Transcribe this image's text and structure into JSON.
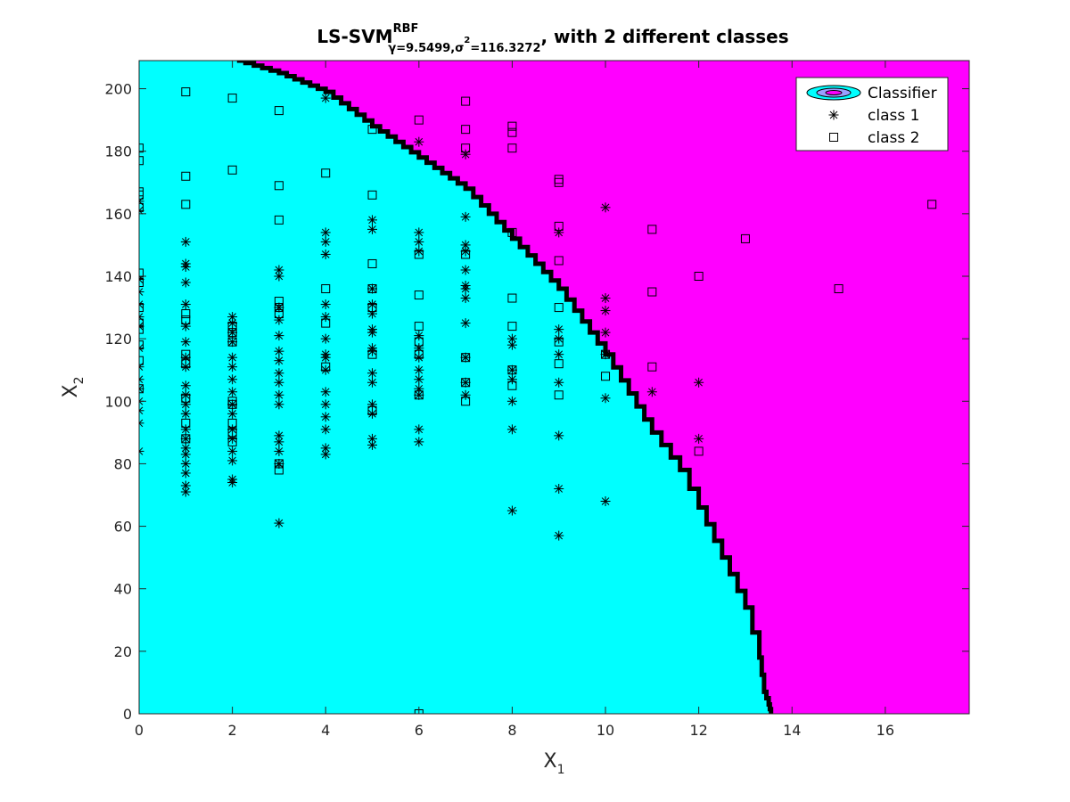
{
  "chart_data": {
    "type": "scatter",
    "title": {
      "main": "LS-SVM",
      "superscript": "RBF",
      "subscript_parts": [
        {
          "text": "γ=9.5499,σ",
          "sup": false
        },
        {
          "text": "2",
          "sup": true
        },
        {
          "text": "=116.3272",
          "sup": false
        }
      ],
      "suffix": ", with 2 different classes"
    },
    "xlabel": {
      "base": "X",
      "sub": "1"
    },
    "ylabel": {
      "base": "X",
      "sub": "2"
    },
    "xlim": [
      0,
      17.8
    ],
    "ylim": [
      0,
      209
    ],
    "xticks": [
      0,
      2,
      4,
      6,
      8,
      10,
      12,
      14,
      16
    ],
    "yticks": [
      0,
      20,
      40,
      60,
      80,
      100,
      120,
      140,
      160,
      180,
      200
    ],
    "grid": false,
    "legend_position": "top-right",
    "legend": [
      {
        "label": "Classifier",
        "marker": "contour-ellipse"
      },
      {
        "label": "class 1",
        "marker": "asterisk"
      },
      {
        "label": "class 2",
        "marker": "square"
      }
    ],
    "colors": {
      "class1_region": "#00ffff",
      "class2_region": "#ff00ff",
      "boundary": "#000000",
      "markers": "#000000"
    },
    "decision_boundary": [
      [
        2.1,
        209
      ],
      [
        3,
        205
      ],
      [
        4,
        199
      ],
      [
        5,
        188
      ],
      [
        6,
        178
      ],
      [
        7,
        168
      ],
      [
        8,
        152
      ],
      [
        9,
        136
      ],
      [
        10,
        115
      ],
      [
        11,
        90
      ],
      [
        11.6,
        78
      ],
      [
        12,
        66
      ],
      [
        12.5,
        50
      ],
      [
        13,
        34
      ],
      [
        13.3,
        18
      ],
      [
        13.4,
        7
      ],
      [
        13.5,
        3
      ],
      [
        13.55,
        0
      ]
    ],
    "series": [
      {
        "name": "class 1",
        "marker": "asterisk",
        "points": [
          [
            0,
            84
          ],
          [
            0,
            93
          ],
          [
            0,
            97
          ],
          [
            0,
            100
          ],
          [
            0,
            104
          ],
          [
            0,
            107
          ],
          [
            0,
            111
          ],
          [
            0,
            117
          ],
          [
            0,
            124
          ],
          [
            0,
            127
          ],
          [
            0,
            131
          ],
          [
            0,
            135
          ],
          [
            0,
            139
          ],
          [
            0,
            161
          ],
          [
            0,
            164
          ],
          [
            1,
            71
          ],
          [
            1,
            73
          ],
          [
            1,
            77
          ],
          [
            1,
            80
          ],
          [
            1,
            83
          ],
          [
            1,
            85
          ],
          [
            1,
            88
          ],
          [
            1,
            91
          ],
          [
            1,
            96
          ],
          [
            1,
            99
          ],
          [
            1,
            102
          ],
          [
            1,
            105
          ],
          [
            1,
            111
          ],
          [
            1,
            114
          ],
          [
            1,
            119
          ],
          [
            1,
            124
          ],
          [
            1,
            131
          ],
          [
            1,
            138
          ],
          [
            1,
            143
          ],
          [
            1,
            144
          ],
          [
            1,
            151
          ],
          [
            2,
            74
          ],
          [
            2,
            75
          ],
          [
            2,
            81
          ],
          [
            2,
            84
          ],
          [
            2,
            88
          ],
          [
            2,
            91
          ],
          [
            2,
            96
          ],
          [
            2,
            99
          ],
          [
            2,
            103
          ],
          [
            2,
            107
          ],
          [
            2,
            111
          ],
          [
            2,
            114
          ],
          [
            2,
            119
          ],
          [
            2,
            122
          ],
          [
            2,
            125
          ],
          [
            2,
            127
          ],
          [
            3,
            61
          ],
          [
            3,
            80
          ],
          [
            3,
            84
          ],
          [
            3,
            87
          ],
          [
            3,
            89
          ],
          [
            3,
            99
          ],
          [
            3,
            102
          ],
          [
            3,
            106
          ],
          [
            3,
            109
          ],
          [
            3,
            113
          ],
          [
            3,
            116
          ],
          [
            3,
            121
          ],
          [
            3,
            126
          ],
          [
            3,
            130
          ],
          [
            3,
            140
          ],
          [
            3,
            142
          ],
          [
            4,
            83
          ],
          [
            4,
            85
          ],
          [
            4,
            91
          ],
          [
            4,
            95
          ],
          [
            4,
            99
          ],
          [
            4,
            103
          ],
          [
            4,
            110
          ],
          [
            4,
            114
          ],
          [
            4,
            115
          ],
          [
            4,
            120
          ],
          [
            4,
            127
          ],
          [
            4,
            131
          ],
          [
            4,
            147
          ],
          [
            4,
            151
          ],
          [
            4,
            154
          ],
          [
            4,
            197
          ],
          [
            5,
            86
          ],
          [
            5,
            88
          ],
          [
            5,
            96
          ],
          [
            5,
            99
          ],
          [
            5,
            106
          ],
          [
            5,
            109
          ],
          [
            5,
            116
          ],
          [
            5,
            117
          ],
          [
            5,
            122
          ],
          [
            5,
            123
          ],
          [
            5,
            128
          ],
          [
            5,
            131
          ],
          [
            5,
            136
          ],
          [
            5,
            155
          ],
          [
            5,
            158
          ],
          [
            6,
            87
          ],
          [
            6,
            91
          ],
          [
            6,
            102
          ],
          [
            6,
            104
          ],
          [
            6,
            107
          ],
          [
            6,
            110
          ],
          [
            6,
            114
          ],
          [
            6,
            117
          ],
          [
            6,
            121
          ],
          [
            6,
            148
          ],
          [
            6,
            151
          ],
          [
            6,
            154
          ],
          [
            6,
            183
          ],
          [
            7,
            102
          ],
          [
            7,
            106
          ],
          [
            7,
            114
          ],
          [
            7,
            125
          ],
          [
            7,
            133
          ],
          [
            7,
            136
          ],
          [
            7,
            137
          ],
          [
            7,
            142
          ],
          [
            7,
            148
          ],
          [
            7,
            150
          ],
          [
            7,
            159
          ],
          [
            7,
            179
          ],
          [
            8,
            65
          ],
          [
            8,
            91
          ],
          [
            8,
            100
          ],
          [
            8,
            107
          ],
          [
            8,
            110
          ],
          [
            8,
            118
          ],
          [
            8,
            120
          ],
          [
            9,
            57
          ],
          [
            9,
            72
          ],
          [
            9,
            89
          ],
          [
            9,
            106
          ],
          [
            9,
            115
          ],
          [
            9,
            120
          ],
          [
            9,
            123
          ],
          [
            9,
            154
          ],
          [
            10,
            68
          ],
          [
            10,
            101
          ],
          [
            10,
            115
          ],
          [
            10,
            122
          ],
          [
            10,
            129
          ],
          [
            10,
            133
          ],
          [
            10,
            162
          ],
          [
            11,
            103
          ],
          [
            12,
            88
          ],
          [
            12,
            106
          ]
        ]
      },
      {
        "name": "class 2",
        "marker": "square",
        "points": [
          [
            0,
            104
          ],
          [
            0,
            113
          ],
          [
            0,
            118
          ],
          [
            0,
            123
          ],
          [
            0,
            125
          ],
          [
            0,
            130
          ],
          [
            0,
            138
          ],
          [
            0,
            141
          ],
          [
            0,
            162
          ],
          [
            0,
            166
          ],
          [
            0,
            167
          ],
          [
            0,
            177
          ],
          [
            0,
            181
          ],
          [
            1,
            88
          ],
          [
            1,
            93
          ],
          [
            1,
            101
          ],
          [
            1,
            112
          ],
          [
            1,
            115
          ],
          [
            1,
            126
          ],
          [
            1,
            128
          ],
          [
            1,
            163
          ],
          [
            1,
            172
          ],
          [
            1,
            199
          ],
          [
            2,
            87
          ],
          [
            2,
            90
          ],
          [
            2,
            93
          ],
          [
            2,
            99
          ],
          [
            2,
            100
          ],
          [
            2,
            119
          ],
          [
            2,
            122
          ],
          [
            2,
            124
          ],
          [
            2,
            174
          ],
          [
            2,
            197
          ],
          [
            3,
            78
          ],
          [
            3,
            80
          ],
          [
            3,
            128
          ],
          [
            3,
            130
          ],
          [
            3,
            132
          ],
          [
            3,
            158
          ],
          [
            3,
            169
          ],
          [
            3,
            193
          ],
          [
            4,
            111
          ],
          [
            4,
            125
          ],
          [
            4,
            136
          ],
          [
            4,
            173
          ],
          [
            5,
            97
          ],
          [
            5,
            115
          ],
          [
            5,
            130
          ],
          [
            5,
            136
          ],
          [
            5,
            144
          ],
          [
            5,
            166
          ],
          [
            5,
            187
          ],
          [
            6,
            0
          ],
          [
            6,
            102
          ],
          [
            6,
            115
          ],
          [
            6,
            119
          ],
          [
            6,
            124
          ],
          [
            6,
            134
          ],
          [
            6,
            147
          ],
          [
            6,
            190
          ],
          [
            7,
            100
          ],
          [
            7,
            106
          ],
          [
            7,
            114
          ],
          [
            7,
            147
          ],
          [
            7,
            181
          ],
          [
            7,
            187
          ],
          [
            7,
            196
          ],
          [
            8,
            105
          ],
          [
            8,
            110
          ],
          [
            8,
            124
          ],
          [
            8,
            133
          ],
          [
            8,
            154
          ],
          [
            8,
            181
          ],
          [
            8,
            186
          ],
          [
            8,
            188
          ],
          [
            9,
            102
          ],
          [
            9,
            112
          ],
          [
            9,
            119
          ],
          [
            9,
            130
          ],
          [
            9,
            145
          ],
          [
            9,
            156
          ],
          [
            9,
            170
          ],
          [
            9,
            171
          ],
          [
            10,
            108
          ],
          [
            10,
            115
          ],
          [
            11,
            111
          ],
          [
            11,
            135
          ],
          [
            11,
            155
          ],
          [
            12,
            84
          ],
          [
            12,
            140
          ],
          [
            13,
            152
          ],
          [
            15,
            136
          ],
          [
            17,
            163
          ]
        ]
      }
    ]
  }
}
